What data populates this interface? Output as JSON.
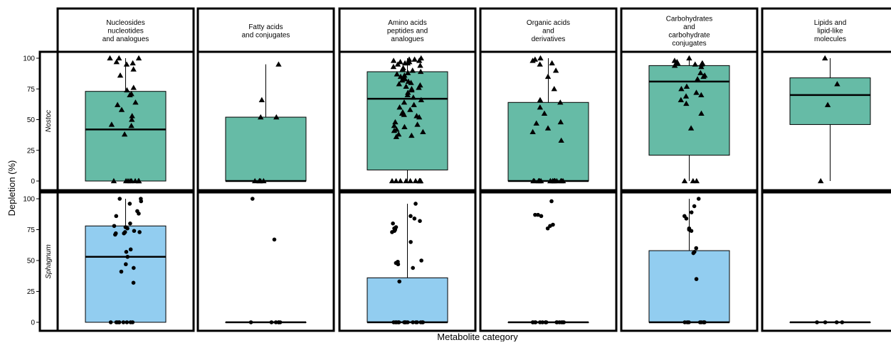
{
  "chart_data": {
    "type": "box",
    "xlabel": "Metabolite category",
    "ylabel": "Depletion (%)",
    "ylim": [
      0,
      100
    ],
    "yticks": [
      0,
      25,
      50,
      75,
      100
    ],
    "facet_columns": [
      "Nucleosides\nnucleotides\nand analogues",
      "Fatty acids\nand conjugates",
      "Amino acids\npeptides and\nanalogues",
      "Organic acids\nand\nderivatives",
      "Carbohydrates\nand\ncarbohydrate\nconjugates",
      "Lipids and\nlipid-like\nmolecules"
    ],
    "facet_rows": [
      "Nostoc",
      "Sphagnum"
    ],
    "colors": {
      "Nostoc": "#66bba6",
      "Sphagnum": "#92cdf0"
    },
    "markers": {
      "Nostoc": "triangle",
      "Sphagnum": "circle"
    },
    "panels": [
      {
        "row": "Nostoc",
        "col": 0,
        "box": {
          "q1": 0,
          "median": 42,
          "q3": 73,
          "lower": 0,
          "upper": 100
        },
        "points": [
          100,
          100,
          100,
          97,
          96,
          95,
          86,
          91,
          76,
          74,
          71,
          70,
          64,
          62,
          58,
          53,
          50,
          46,
          45,
          38,
          0,
          0,
          0,
          0,
          0,
          0,
          0,
          0,
          0
        ]
      },
      {
        "row": "Nostoc",
        "col": 1,
        "box": {
          "q1": 0,
          "median": 0,
          "q3": 52,
          "lower": 0,
          "upper": 95
        },
        "points": [
          95,
          66,
          52,
          52,
          0,
          0,
          0,
          0,
          0
        ]
      },
      {
        "row": "Nostoc",
        "col": 2,
        "box": {
          "q1": 9,
          "median": 67,
          "q3": 89,
          "lower": 0,
          "upper": 100
        },
        "points": [
          100,
          99,
          99,
          98,
          98,
          97,
          97,
          96,
          96,
          95,
          94,
          93,
          92,
          91,
          90,
          89,
          88,
          87,
          86,
          85,
          84,
          83,
          82,
          81,
          80,
          79,
          78,
          77,
          76,
          75,
          74,
          72,
          70,
          68,
          66,
          64,
          62,
          60,
          58,
          56,
          55,
          54,
          53,
          52,
          48,
          46,
          45,
          44,
          42,
          41,
          40,
          38,
          37,
          36,
          0,
          0,
          0,
          0,
          0,
          0,
          0,
          0,
          0,
          0,
          0
        ]
      },
      {
        "row": "Nostoc",
        "col": 3,
        "box": {
          "q1": 0,
          "median": 0,
          "q3": 64,
          "lower": 0,
          "upper": 100
        },
        "points": [
          100,
          99,
          98,
          96,
          95,
          90,
          85,
          75,
          66,
          64,
          60,
          55,
          48,
          47,
          43,
          40,
          33,
          0,
          0,
          0,
          0,
          0,
          0,
          0,
          0,
          0,
          0,
          0,
          0,
          0,
          0,
          0,
          0
        ]
      },
      {
        "row": "Nostoc",
        "col": 4,
        "box": {
          "q1": 21,
          "median": 81,
          "q3": 94,
          "lower": 0,
          "upper": 100
        },
        "points": [
          100,
          98,
          97,
          96,
          96,
          95,
          95,
          94,
          93,
          88,
          86,
          85,
          83,
          77,
          75,
          72,
          70,
          69,
          66,
          63,
          55,
          43,
          0,
          0,
          0
        ]
      },
      {
        "row": "Nostoc",
        "col": 5,
        "box": {
          "q1": 46,
          "median": 70,
          "q3": 84,
          "lower": 0,
          "upper": 100
        },
        "points": [
          100,
          79,
          62,
          0
        ]
      },
      {
        "row": "Sphagnum",
        "col": 0,
        "box": {
          "q1": 0,
          "median": 53,
          "q3": 78,
          "lower": 0,
          "upper": 100
        },
        "points": [
          100,
          100,
          98,
          96,
          90,
          88,
          86,
          80,
          78,
          77,
          76,
          74,
          73,
          73,
          72,
          72,
          71,
          59,
          57,
          53,
          47,
          44,
          41,
          32,
          0,
          0,
          0,
          0,
          0,
          0,
          0,
          0,
          0
        ]
      },
      {
        "row": "Sphagnum",
        "col": 1,
        "box": {
          "q1": 0,
          "median": 0,
          "q3": 0,
          "lower": 0,
          "upper": 0
        },
        "points": [
          100,
          67,
          0,
          0,
          0,
          0,
          0,
          0
        ]
      },
      {
        "row": "Sphagnum",
        "col": 2,
        "box": {
          "q1": 0,
          "median": 0,
          "q3": 36,
          "lower": 0,
          "upper": 96
        },
        "points": [
          96,
          86,
          84,
          82,
          80,
          77,
          76,
          75,
          74,
          73,
          65,
          50,
          49,
          48,
          47,
          44,
          33,
          0,
          0,
          0,
          0,
          0,
          0,
          0,
          0,
          0,
          0,
          0,
          0,
          0,
          0,
          0,
          0
        ]
      },
      {
        "row": "Sphagnum",
        "col": 3,
        "box": {
          "q1": 0,
          "median": 0,
          "q3": 0,
          "lower": 0,
          "upper": 0
        },
        "points": [
          98,
          87,
          87,
          86,
          79,
          78,
          76,
          0,
          0,
          0,
          0,
          0,
          0,
          0,
          0,
          0,
          0,
          0,
          0,
          0,
          0,
          0
        ]
      },
      {
        "row": "Sphagnum",
        "col": 4,
        "box": {
          "q1": 0,
          "median": 0,
          "q3": 58,
          "lower": 0,
          "upper": 100
        },
        "points": [
          100,
          94,
          89,
          86,
          84,
          76,
          75,
          74,
          60,
          57,
          56,
          35,
          0,
          0,
          0,
          0,
          0,
          0,
          0,
          0
        ]
      },
      {
        "row": "Sphagnum",
        "col": 5,
        "box": {
          "q1": 0,
          "median": 0,
          "q3": 0,
          "lower": 0,
          "upper": 0
        },
        "points": [
          0,
          0,
          0,
          0
        ]
      }
    ]
  }
}
